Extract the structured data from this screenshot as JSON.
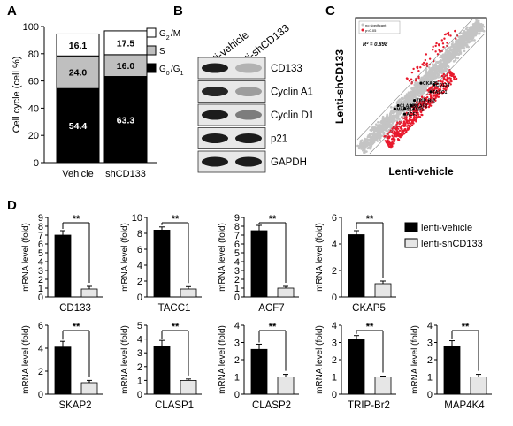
{
  "panel_letters": {
    "a": "A",
    "b": "B",
    "c": "C",
    "d": "D"
  },
  "colors": {
    "black": "#000000",
    "gray": "#bfbfbf",
    "white": "#ffffff",
    "light": "#e6e6e6",
    "red": "#e8192c",
    "grayDot": "#c4c4c4"
  },
  "panelA": {
    "ylabel": "Cell cycle (cell %)",
    "categories": [
      "Vehicle",
      "shCD133"
    ],
    "legend": [
      "G2/M",
      "S",
      "G0/G1"
    ]
  },
  "panelB": {
    "lanes": [
      "lenti-vehicle",
      "lenti-shCD133"
    ],
    "bands": [
      "CD133",
      "Cyclin A1",
      "Cyclin D1",
      "p21",
      "GAPDH"
    ]
  },
  "panelC": {
    "xlabel": "Lenti-vehicle",
    "ylabel": "Lenti-shCD133",
    "r2": "R² = 0.898",
    "legend": [
      "no significant",
      "p<0.05"
    ],
    "labeled_genes": [
      "CKAP5",
      "CD133",
      "TACC1",
      "TRIP-Br2",
      "SKAP2",
      "CLASP2",
      "MAP4K4",
      "CLASP1",
      "ACF7"
    ]
  },
  "panelD": {
    "ylabel": "mRNA level (fold)",
    "significance": "**",
    "legend": [
      "lenti-vehicle",
      "lenti-shCD133"
    ]
  },
  "chart_data": [
    {
      "type": "bar",
      "subtype": "stacked",
      "title": "",
      "ylabel": "Cell cycle (cell %)",
      "categories": [
        "Vehicle",
        "shCD133"
      ],
      "ylim": [
        0,
        100
      ],
      "yticks": [
        0,
        20,
        40,
        60,
        80,
        100
      ],
      "series": [
        {
          "name": "G0/G1",
          "values": [
            54.4,
            63.3
          ],
          "labels": [
            "54.4",
            "63.3"
          ],
          "color": "#000000"
        },
        {
          "name": "S",
          "values": [
            24.0,
            16.0
          ],
          "labels": [
            "24.0",
            "16.0"
          ],
          "color": "#bfbfbf"
        },
        {
          "name": "G2/M",
          "values": [
            16.1,
            17.5
          ],
          "labels": [
            "16.1",
            "17.5"
          ],
          "color": "#ffffff"
        }
      ]
    },
    {
      "type": "scatter",
      "xlabel": "Lenti-vehicle",
      "ylabel": "Lenti-shCD133",
      "annotation": "R² = 0.898",
      "series": [
        {
          "name": "no significant",
          "color": "#c4c4c4"
        },
        {
          "name": "p<0.05",
          "color": "#e8192c"
        }
      ],
      "labeled_points": [
        {
          "label": "CKAP5",
          "x": 10.0,
          "y": 9.2
        },
        {
          "label": "CD133",
          "x": 10.8,
          "y": 9.1
        },
        {
          "label": "TACC1",
          "x": 10.6,
          "y": 8.7
        },
        {
          "label": "TRIP-Br2",
          "x": 9.6,
          "y": 8.2
        },
        {
          "label": "SKAP2",
          "x": 9.4,
          "y": 7.9
        },
        {
          "label": "CLASP2",
          "x": 8.6,
          "y": 7.9
        },
        {
          "label": "MAP4K4",
          "x": 8.4,
          "y": 7.7
        },
        {
          "label": "CLASP1",
          "x": 9.0,
          "y": 7.7
        },
        {
          "label": "ACF7",
          "x": 9.0,
          "y": 7.4
        }
      ]
    },
    {
      "type": "bar",
      "title": "CD133",
      "categories": [
        "lenti-vehicle",
        "lenti-shCD133"
      ],
      "values": [
        7.0,
        0.9
      ],
      "errors": [
        0.5,
        0.3
      ],
      "ylim": [
        0,
        9
      ],
      "yticks": [
        0,
        1,
        2,
        3,
        4,
        5,
        6,
        7,
        8,
        9
      ],
      "ylabel": "mRNA level (fold)"
    },
    {
      "type": "bar",
      "title": "TACC1",
      "categories": [
        "lenti-vehicle",
        "lenti-shCD133"
      ],
      "values": [
        8.4,
        1.0
      ],
      "errors": [
        0.4,
        0.3
      ],
      "ylim": [
        0,
        10
      ],
      "yticks": [
        0,
        2,
        4,
        6,
        8,
        10
      ],
      "ylabel": "mRNA level (fold)"
    },
    {
      "type": "bar",
      "title": "ACF7",
      "categories": [
        "lenti-vehicle",
        "lenti-shCD133"
      ],
      "values": [
        7.5,
        1.0
      ],
      "errors": [
        0.6,
        0.2
      ],
      "ylim": [
        0,
        9
      ],
      "yticks": [
        0,
        1,
        2,
        3,
        4,
        5,
        6,
        7,
        8,
        9
      ],
      "ylabel": "mRNA level (fold)"
    },
    {
      "type": "bar",
      "title": "CKAP5",
      "categories": [
        "lenti-vehicle",
        "lenti-shCD133"
      ],
      "values": [
        4.7,
        1.0
      ],
      "errors": [
        0.3,
        0.2
      ],
      "ylim": [
        0,
        6
      ],
      "yticks": [
        0,
        2,
        4,
        6
      ],
      "ylabel": "mRNA level (fold)"
    },
    {
      "type": "bar",
      "title": "SKAP2",
      "categories": [
        "lenti-vehicle",
        "lenti-shCD133"
      ],
      "values": [
        4.1,
        1.0
      ],
      "errors": [
        0.5,
        0.2
      ],
      "ylim": [
        0,
        6
      ],
      "yticks": [
        0,
        2,
        4,
        6
      ],
      "ylabel": "mRNA level (fold)"
    },
    {
      "type": "bar",
      "title": "CLASP1",
      "categories": [
        "lenti-vehicle",
        "lenti-shCD133"
      ],
      "values": [
        3.5,
        1.0
      ],
      "errors": [
        0.4,
        0.1
      ],
      "ylim": [
        0,
        5
      ],
      "yticks": [
        0,
        1,
        2,
        3,
        4,
        5
      ],
      "ylabel": "mRNA level (fold)"
    },
    {
      "type": "bar",
      "title": "CLASP2",
      "categories": [
        "lenti-vehicle",
        "lenti-shCD133"
      ],
      "values": [
        2.6,
        1.0
      ],
      "errors": [
        0.3,
        0.15
      ],
      "ylim": [
        0,
        4
      ],
      "yticks": [
        0,
        1,
        2,
        3,
        4
      ],
      "ylabel": "mRNA level (fold)"
    },
    {
      "type": "bar",
      "title": "TRIP-Br2",
      "categories": [
        "lenti-vehicle",
        "lenti-shCD133"
      ],
      "values": [
        3.2,
        1.0
      ],
      "errors": [
        0.2,
        0.05
      ],
      "ylim": [
        0,
        4
      ],
      "yticks": [
        0,
        1,
        2,
        3,
        4
      ],
      "ylabel": "mRNA level (fold)"
    },
    {
      "type": "bar",
      "title": "MAP4K4",
      "categories": [
        "lenti-vehicle",
        "lenti-shCD133"
      ],
      "values": [
        2.8,
        1.0
      ],
      "errors": [
        0.3,
        0.15
      ],
      "ylim": [
        0,
        4
      ],
      "yticks": [
        0,
        1,
        2,
        3,
        4
      ],
      "ylabel": "mRNA level (fold)"
    }
  ]
}
